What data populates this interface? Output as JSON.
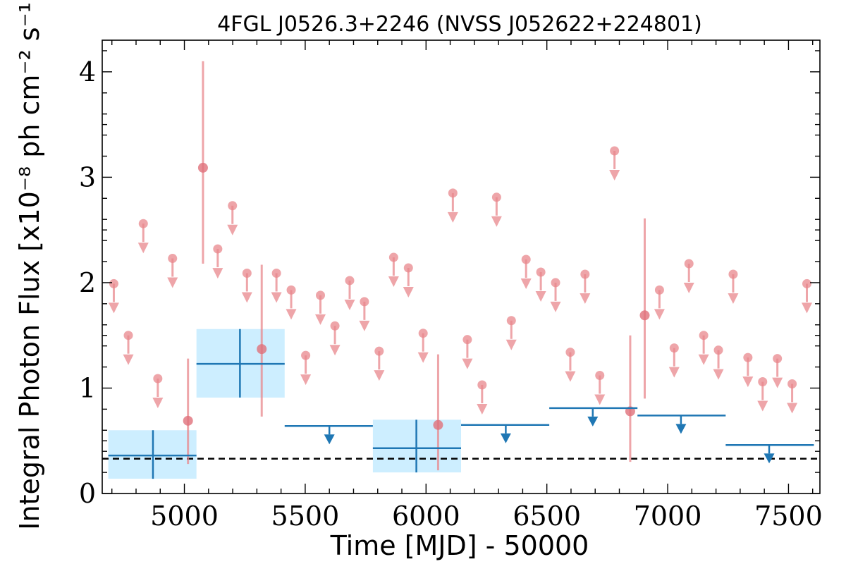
{
  "chart_data": {
    "type": "scatter",
    "title": "4FGL J0526.3+2246 (NVSS J052622+224801)",
    "xlabel": "Time [MJD] - 50000",
    "ylabel": "Integral Photon Flux [x10⁻⁸ ph cm⁻² s⁻¹]",
    "xlim": [
      4660,
      7630
    ],
    "ylim": [
      0,
      4.3
    ],
    "x_ticks": [
      5000,
      5500,
      6000,
      6500,
      7000,
      7500
    ],
    "y_ticks": [
      0,
      1,
      2,
      3,
      4
    ],
    "x_tick_labels": [
      "5000",
      "5500",
      "6000",
      "6500",
      "7000",
      "7500"
    ],
    "y_tick_labels": [
      "0",
      "1",
      "2",
      "3",
      "4"
    ],
    "reference_flux": 0.33,
    "colors": {
      "short_bins": "#e8878c",
      "long_bins": "#1f77b4",
      "long_bins_error": "#cdeeff",
      "reference": "#000000"
    },
    "series": [
      {
        "bin": "short",
        "detections": [
          {
            "x": 5015,
            "y": 0.69,
            "ylo": 0.28,
            "yhi": 1.28
          },
          {
            "x": 5077,
            "y": 3.09,
            "ylo": 2.18,
            "yhi": 4.1
          },
          {
            "x": 5320,
            "y": 1.37,
            "ylo": 0.73,
            "yhi": 2.17
          },
          {
            "x": 6050,
            "y": 0.65,
            "ylo": 0.22,
            "yhi": 1.32
          },
          {
            "x": 6845,
            "y": 0.78,
            "ylo": 0.3,
            "yhi": 1.5
          },
          {
            "x": 6905,
            "y": 1.69,
            "ylo": 0.9,
            "yhi": 2.61
          }
        ],
        "upper_limits": [
          {
            "x": 4708,
            "y": 1.99
          },
          {
            "x": 4768,
            "y": 1.5
          },
          {
            "x": 4830,
            "y": 2.56
          },
          {
            "x": 4890,
            "y": 1.09
          },
          {
            "x": 4951,
            "y": 2.23
          },
          {
            "x": 5138,
            "y": 2.32
          },
          {
            "x": 5199,
            "y": 2.73
          },
          {
            "x": 5259,
            "y": 2.09
          },
          {
            "x": 5381,
            "y": 2.09
          },
          {
            "x": 5442,
            "y": 1.93
          },
          {
            "x": 5502,
            "y": 1.31
          },
          {
            "x": 5563,
            "y": 1.88
          },
          {
            "x": 5623,
            "y": 1.59
          },
          {
            "x": 5684,
            "y": 2.02
          },
          {
            "x": 5745,
            "y": 1.82
          },
          {
            "x": 5806,
            "y": 1.35
          },
          {
            "x": 5866,
            "y": 2.24
          },
          {
            "x": 5927,
            "y": 2.14
          },
          {
            "x": 5988,
            "y": 1.52
          },
          {
            "x": 6111,
            "y": 2.85
          },
          {
            "x": 6171,
            "y": 1.46
          },
          {
            "x": 6232,
            "y": 1.03
          },
          {
            "x": 6292,
            "y": 2.81
          },
          {
            "x": 6353,
            "y": 1.64
          },
          {
            "x": 6414,
            "y": 2.22
          },
          {
            "x": 6475,
            "y": 2.1
          },
          {
            "x": 6536,
            "y": 2.0
          },
          {
            "x": 6597,
            "y": 1.34
          },
          {
            "x": 6658,
            "y": 2.08
          },
          {
            "x": 6719,
            "y": 1.12
          },
          {
            "x": 6780,
            "y": 3.25
          },
          {
            "x": 6966,
            "y": 1.93
          },
          {
            "x": 7027,
            "y": 1.38
          },
          {
            "x": 7088,
            "y": 2.18
          },
          {
            "x": 7149,
            "y": 1.5
          },
          {
            "x": 7210,
            "y": 1.36
          },
          {
            "x": 7271,
            "y": 2.08
          },
          {
            "x": 7332,
            "y": 1.29
          },
          {
            "x": 7393,
            "y": 1.06
          },
          {
            "x": 7454,
            "y": 1.28
          },
          {
            "x": 7515,
            "y": 1.04
          },
          {
            "x": 7576,
            "y": 1.99
          }
        ]
      },
      {
        "bin": "long",
        "detections": [
          {
            "x": 4870,
            "xlo": 4685,
            "xhi": 5050,
            "y": 0.36,
            "ylo": 0.14,
            "yhi": 0.6
          },
          {
            "x": 5230,
            "xlo": 5050,
            "xhi": 5415,
            "y": 1.23,
            "ylo": 0.91,
            "yhi": 1.56
          },
          {
            "x": 5960,
            "xlo": 5780,
            "xhi": 6145,
            "y": 0.43,
            "ylo": 0.2,
            "yhi": 0.7
          }
        ],
        "upper_limits": [
          {
            "x": 5600,
            "xlo": 5415,
            "xhi": 5780,
            "y": 0.64
          },
          {
            "x": 6330,
            "xlo": 6145,
            "xhi": 6510,
            "y": 0.65
          },
          {
            "x": 6690,
            "xlo": 6510,
            "xhi": 6875,
            "y": 0.81
          },
          {
            "x": 7055,
            "xlo": 6875,
            "xhi": 7240,
            "y": 0.74
          },
          {
            "x": 7420,
            "xlo": 7240,
            "xhi": 7605,
            "y": 0.46
          }
        ]
      }
    ]
  }
}
